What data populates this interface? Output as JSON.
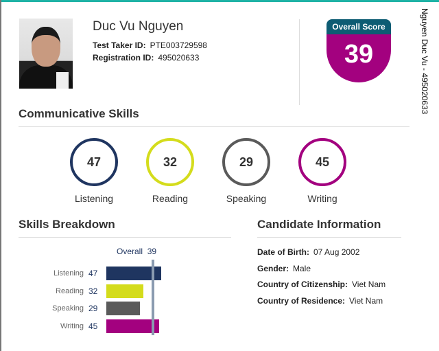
{
  "candidate": {
    "name": "Duc Vu Nguyen",
    "test_taker_id_label": "Test Taker ID:",
    "test_taker_id": "PTE003729598",
    "registration_id_label": "Registration ID:",
    "registration_id": "495020633",
    "side_text": "Nguyen Duc Vu - 495020633"
  },
  "overall": {
    "label": "Overall Score",
    "score": "39"
  },
  "communicative": {
    "title": "Communicative Skills",
    "skills": [
      {
        "label": "Listening",
        "score": "47",
        "color": "#1f3560"
      },
      {
        "label": "Reading",
        "score": "32",
        "color": "#d4dc1c"
      },
      {
        "label": "Speaking",
        "score": "29",
        "color": "#5a5a5a"
      },
      {
        "label": "Writing",
        "score": "45",
        "color": "#a3017f"
      }
    ]
  },
  "breakdown": {
    "title": "Skills Breakdown",
    "overall_label": "Overall",
    "overall_value": "39",
    "overall_line_color": "#8a9bb0",
    "items": [
      {
        "label": "Listening",
        "value": 47
      },
      {
        "label": "Reading",
        "value": 32
      },
      {
        "label": "Speaking",
        "value": 29
      },
      {
        "label": "Writing",
        "value": 45
      }
    ]
  },
  "candidate_info": {
    "title": "Candidate Information",
    "fields": [
      {
        "label": "Date of Birth:",
        "value": "07 Aug 2002"
      },
      {
        "label": "Gender:",
        "value": "Male"
      },
      {
        "label": "Country of Citizenship:",
        "value": "Viet Nam"
      },
      {
        "label": "Country of Residence:",
        "value": "Viet Nam"
      }
    ]
  }
}
